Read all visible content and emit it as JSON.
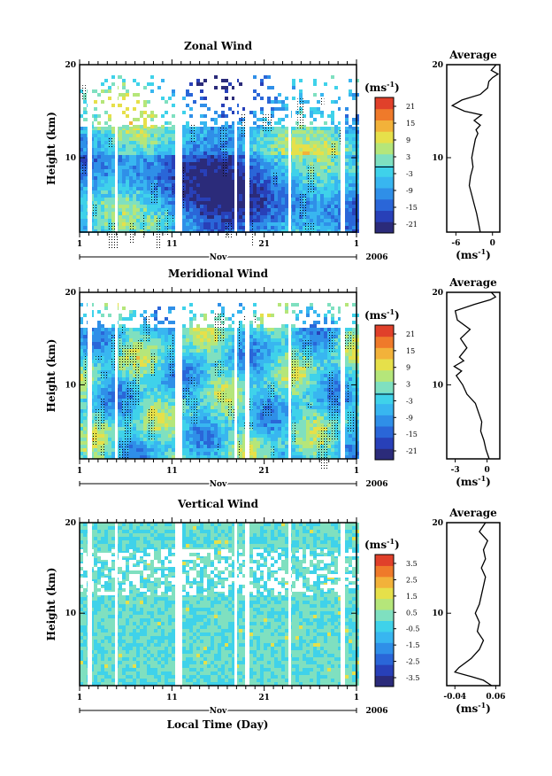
{
  "colors": {
    "colormap": [
      "#2b2b7a",
      "#2840b8",
      "#2a66d8",
      "#2f8fe8",
      "#38b6f0",
      "#3fd2ea",
      "#7fe0c0",
      "#b5e67a",
      "#e6e04a",
      "#f2b23a",
      "#ef7a2a",
      "#e0402a"
    ]
  },
  "x_axis": {
    "ticks": [
      "1",
      "11",
      "21",
      "1"
    ],
    "month": "Nov",
    "year": "2006",
    "xlabel": "Local Time (Day)"
  },
  "chart_data": [
    {
      "id": "zonal",
      "type": "heatmap",
      "title": "Zonal Wind",
      "ylabel": "Height (km)",
      "ylim": [
        2,
        20
      ],
      "yticks": [
        "20",
        "10"
      ],
      "unit_base": "(ms",
      "unit_exp": "-1",
      "colorbar_ticks": [
        "21",
        "15",
        "9",
        "3",
        "-3",
        "-9",
        "-15",
        "-21"
      ],
      "profile": {
        "title": "Average",
        "xticks": [
          "-6",
          "0"
        ],
        "xlim": [
          -7.5,
          1.2
        ],
        "points": [
          [
            -2.0,
            2
          ],
          [
            -2.3,
            3
          ],
          [
            -2.6,
            4
          ],
          [
            -3.0,
            5
          ],
          [
            -3.4,
            6
          ],
          [
            -3.8,
            7
          ],
          [
            -3.6,
            8
          ],
          [
            -3.2,
            9
          ],
          [
            -3.4,
            10
          ],
          [
            -3.1,
            11
          ],
          [
            -2.8,
            12
          ],
          [
            -2.4,
            12.6
          ],
          [
            -2.7,
            13
          ],
          [
            -2.0,
            13.5
          ],
          [
            -3.0,
            14
          ],
          [
            -1.8,
            14.6
          ],
          [
            -4.6,
            15
          ],
          [
            -6.6,
            15.6
          ],
          [
            -5.0,
            16.2
          ],
          [
            -2.0,
            16.8
          ],
          [
            -0.8,
            17.5
          ],
          [
            -0.6,
            18.2
          ],
          [
            0.0,
            18.6
          ],
          [
            0.9,
            19.0
          ],
          [
            -0.2,
            19.4
          ],
          [
            0.6,
            20
          ]
        ]
      }
    },
    {
      "id": "meridional",
      "type": "heatmap",
      "title": "Meridional Wind",
      "ylabel": "Height (km)",
      "ylim": [
        2,
        20
      ],
      "yticks": [
        "20",
        "10"
      ],
      "unit_base": "(ms",
      "unit_exp": "-1",
      "colorbar_ticks": [
        "21",
        "15",
        "9",
        "3",
        "-3",
        "-9",
        "-15",
        "-21"
      ],
      "profile": {
        "title": "Average",
        "xticks": [
          "-3",
          "0"
        ],
        "xlim": [
          -3.8,
          1.2
        ],
        "points": [
          [
            0.2,
            2
          ],
          [
            -0.1,
            3
          ],
          [
            -0.3,
            4
          ],
          [
            -0.6,
            5
          ],
          [
            -0.5,
            6
          ],
          [
            -0.8,
            7
          ],
          [
            -1.1,
            8
          ],
          [
            -1.9,
            9
          ],
          [
            -2.3,
            10
          ],
          [
            -2.9,
            11
          ],
          [
            -2.4,
            11.5
          ],
          [
            -3.1,
            12
          ],
          [
            -2.2,
            12.6
          ],
          [
            -2.6,
            13
          ],
          [
            -1.9,
            14
          ],
          [
            -2.5,
            15
          ],
          [
            -1.6,
            16
          ],
          [
            -2.8,
            17
          ],
          [
            -3.0,
            18
          ],
          [
            -1.2,
            18.7
          ],
          [
            0.3,
            19.2
          ],
          [
            0.8,
            19.5
          ],
          [
            0.4,
            20
          ]
        ]
      }
    },
    {
      "id": "vertical",
      "type": "heatmap",
      "title": "Vertical Wind",
      "ylabel": "Height (km)",
      "ylim": [
        2,
        20
      ],
      "yticks": [
        "20",
        "10"
      ],
      "unit_base": "(ms",
      "unit_exp": "-1",
      "colorbar_ticks": [
        "3.5",
        "2.5",
        "1.5",
        "0.5",
        "-0.5",
        "-1.5",
        "-2.5",
        "-3.5"
      ],
      "profile": {
        "title": "Average",
        "xticks": [
          "-0.04",
          "0.06"
        ],
        "xlim": [
          -0.06,
          0.07
        ],
        "points": [
          [
            0.05,
            2
          ],
          [
            0.03,
            2.6
          ],
          [
            0.0,
            3.0
          ],
          [
            -0.04,
            3.5
          ],
          [
            -0.03,
            4.0
          ],
          [
            0.0,
            5
          ],
          [
            0.02,
            6
          ],
          [
            0.03,
            7
          ],
          [
            0.015,
            8
          ],
          [
            0.02,
            9
          ],
          [
            0.01,
            10
          ],
          [
            0.02,
            11
          ],
          [
            0.025,
            12
          ],
          [
            0.03,
            13
          ],
          [
            0.035,
            14
          ],
          [
            0.025,
            15
          ],
          [
            0.035,
            16
          ],
          [
            0.03,
            17
          ],
          [
            0.04,
            18
          ],
          [
            0.02,
            19
          ],
          [
            0.035,
            20
          ]
        ]
      }
    }
  ]
}
